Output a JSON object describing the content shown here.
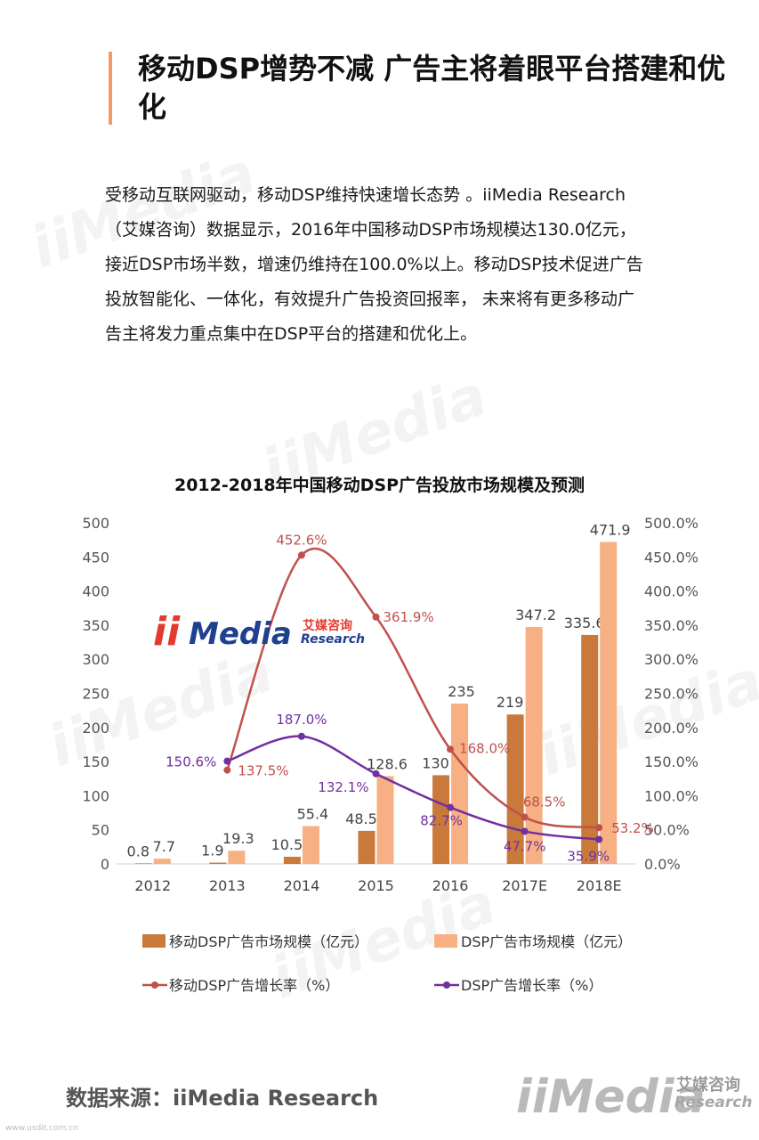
{
  "header": {
    "title": "移动DSP增势不减 广告主将着眼平台搭建和优化"
  },
  "body_lines": [
    "受移动互联网驱动，移动DSP维持快速增长态势 。iiMedia Research",
    "（艾媒咨询）数据显示，2016年中国移动DSP市场规模达130.0亿元，",
    "接近DSP市场半数，增速仍维持在100.0%以上。移动DSP技术促进广告",
    "投放智能化、一体化，有效提升广告投资回报率， 未来将有更多移动广",
    "告主将发力重点集中在DSP平台的搭建和优化上。"
  ],
  "logo": {
    "ii": "ii",
    "media": "Media",
    "cn": "艾媒咨询",
    "en": "Research"
  },
  "watermark_text": "iiMedia",
  "source": "数据来源：iiMedia Research",
  "url_text": "www.usdit.com.cn",
  "colors": {
    "accent": "#f29a63",
    "bar_mobile": "#c97a3a",
    "bar_dsp": "#f6b083",
    "line_mobile": "#c0504d",
    "line_dsp": "#7030a0"
  },
  "chart_data": {
    "type": "bar",
    "title": "2012-2018年中国移动DSP广告投放市场规模及预测",
    "categories": [
      "2012",
      "2013",
      "2014",
      "2015",
      "2016",
      "2017E",
      "2018E"
    ],
    "y_left": {
      "min": 0,
      "max": 500,
      "step": 50,
      "ticks": [
        "0",
        "50",
        "100",
        "150",
        "200",
        "250",
        "300",
        "350",
        "400",
        "450",
        "500"
      ]
    },
    "y_right": {
      "min": 0,
      "max": 500,
      "step": 50,
      "ticks": [
        "0.0%",
        "50.0%",
        "100.0%",
        "150.0%",
        "200.0%",
        "250.0%",
        "300.0%",
        "350.0%",
        "400.0%",
        "450.0%",
        "500.0%"
      ]
    },
    "bar_series": [
      {
        "name": "移动DSP广告市场规模（亿元）",
        "values": [
          0.8,
          1.9,
          10.5,
          48.5,
          130,
          219,
          335.6
        ],
        "labels": [
          "0.8",
          "1.9",
          "10.5",
          "48.5",
          "130",
          "219",
          "335.6"
        ]
      },
      {
        "name": "DSP广告市场规模（亿元）",
        "values": [
          7.7,
          19.3,
          55.4,
          128.6,
          235,
          347.2,
          471.9
        ],
        "labels": [
          "7.7",
          "19.3",
          "55.4",
          "128.6",
          "235",
          "347.2",
          "471.9"
        ]
      }
    ],
    "line_series": [
      {
        "name": "移动DSP广告增长率（%）",
        "start_index": 1,
        "values": [
          137.5,
          452.6,
          361.9,
          168.0,
          68.5,
          53.2
        ],
        "labels": [
          "137.5%",
          "452.6%",
          "361.9%",
          "168.0%",
          "68.5%",
          "53.2%"
        ]
      },
      {
        "name": "DSP广告增长率（%）",
        "start_index": 1,
        "values": [
          150.6,
          187.0,
          132.1,
          82.7,
          47.7,
          35.9
        ],
        "labels": [
          "150.6%",
          "187.0%",
          "132.1%",
          "82.7%",
          "47.7%",
          "35.9%"
        ]
      }
    ],
    "legend": {
      "position": "bottom",
      "columns": 2
    }
  }
}
